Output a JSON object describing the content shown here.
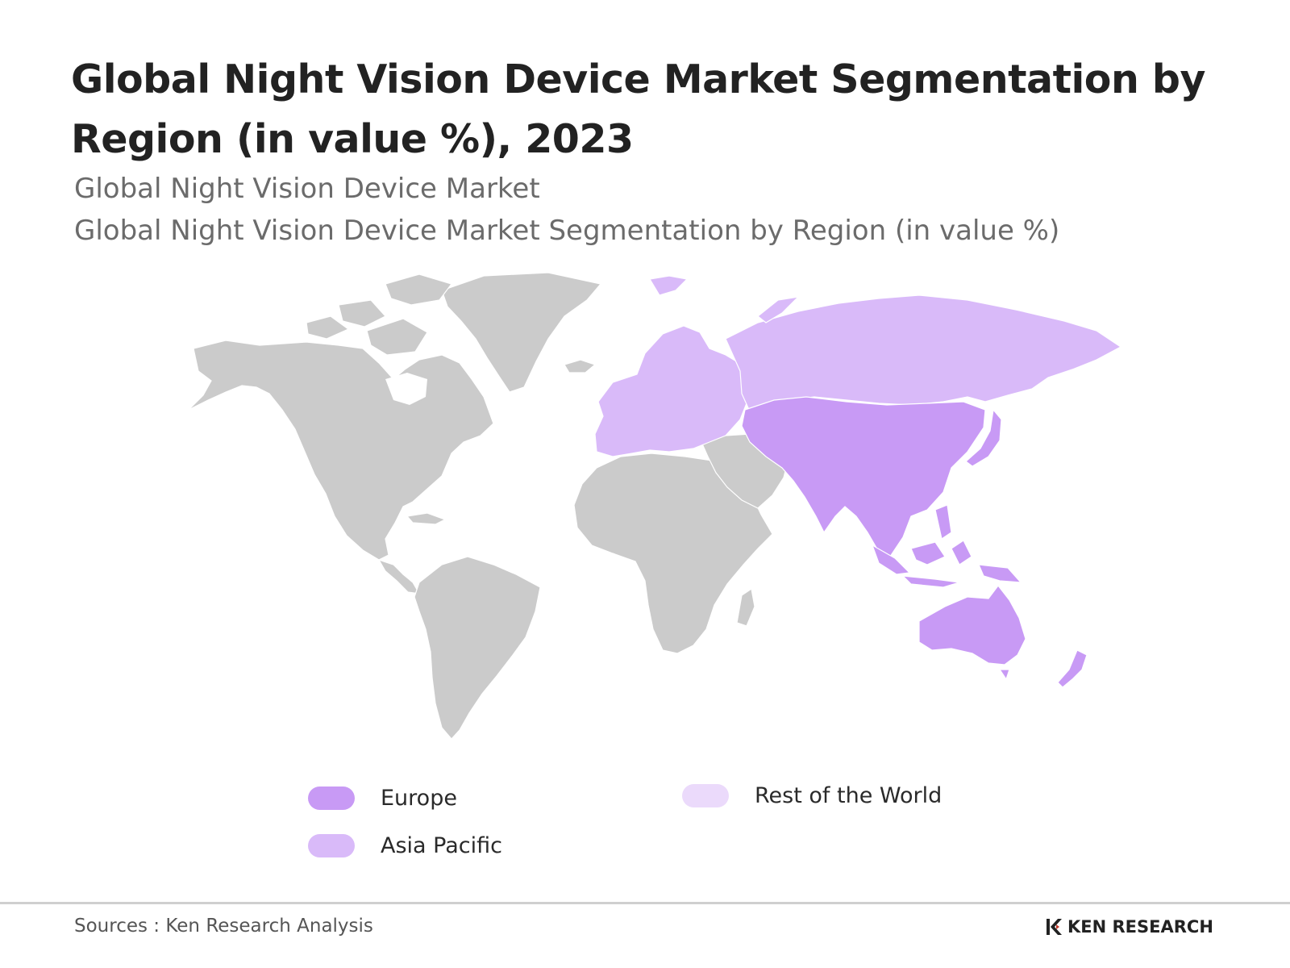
{
  "title": "Global Night Vision Device Market Segmentation by Region (in value %), 2023",
  "subtitle_1": "Global Night Vision Device Market",
  "subtitle_2": "Global Night Vision Device Market Segmentation by Region (in value %)",
  "colors": {
    "europe": "#c89af5",
    "asia_pacific": "#d9baf9",
    "rest_of_world": "#ebdafb",
    "unshaded_land": "#cbcbcb"
  },
  "legend": [
    {
      "label": "Europe",
      "color": "#c89af5"
    },
    {
      "label": "Asia Pacific",
      "color": "#d9baf9"
    },
    {
      "label": "Rest of the World",
      "color": "#ebdafb"
    }
  ],
  "source": "Sources : Ken Research Analysis",
  "logo_text": "KEN RESEARCH"
}
